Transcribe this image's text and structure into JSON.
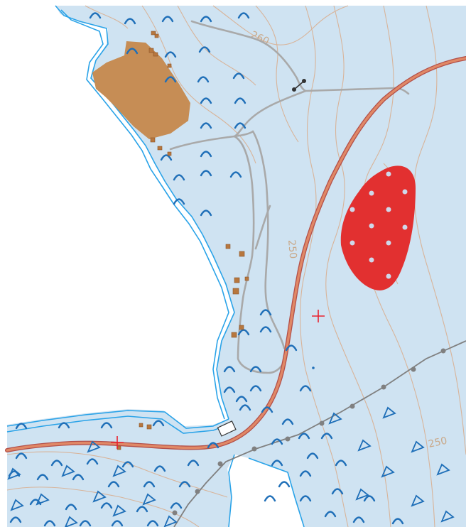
{
  "map": {
    "colors": {
      "background": "#ffffff",
      "marsh_fill": "#cfe3f2",
      "water_line": "#2aa3e8",
      "marsh_symbol": "#1f6fb8",
      "contour": "#d8b49a",
      "contour_label": "#c9a98a",
      "road_fill": "#e08866",
      "road_edge": "#b3504a",
      "track": "#a9a9a9",
      "powerline": "#808080",
      "brown_area": "#c68d55",
      "red_area": "#e23030",
      "building": "#b7773e",
      "control_cross": "#e8222e"
    },
    "contour_labels": [
      "260",
      "250",
      "250"
    ],
    "symbols": {
      "marsh": "marsh-tick-icon",
      "pit": "triangle-pit-icon",
      "control": "red-cross-icon",
      "boulder_dot": "white-dot-icon",
      "building": "small-building-icon",
      "gate": "gate-icon"
    }
  }
}
